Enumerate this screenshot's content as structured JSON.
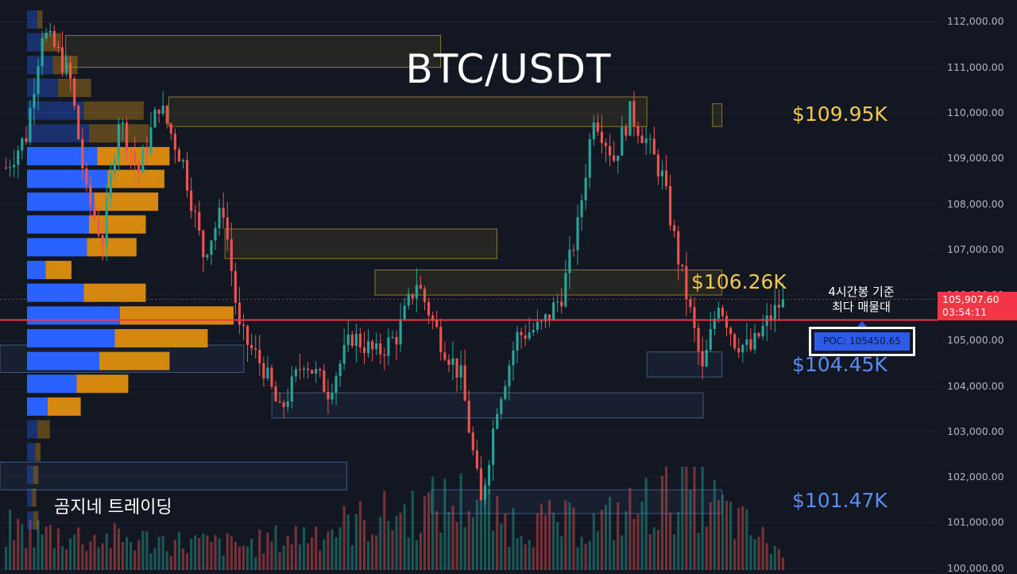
{
  "chart_data": {
    "type": "candlestick",
    "title": "BTC/USDT",
    "ylim": [
      100000,
      112500
    ],
    "y_ticks": [
      "112,000.00",
      "111,000.00",
      "110,000.00",
      "109,000.00",
      "108,000.00",
      "107,000.00",
      "106,000.00",
      "105,000.00",
      "104,000.00",
      "103,000.00",
      "102,000.00",
      "101,000.00",
      "100,000.00"
    ],
    "y_tick_values": [
      112000,
      111000,
      110000,
      109000,
      108000,
      107000,
      106000,
      105000,
      104000,
      103000,
      102000,
      101000,
      100000
    ],
    "current_price": 105907.6,
    "current_price_label": "105,907.60",
    "countdown": "03:54:11",
    "poc_value": 105450.65,
    "poc_label": "POC: 105450.65",
    "annotation": "4시간봉 기준\n최다 매물대",
    "watermark": "곰지네 트레이딩",
    "level_labels": [
      {
        "text": "$109.95K",
        "value": 109950,
        "color": "#f2c94c"
      },
      {
        "text": "$106.26K",
        "value": 106260,
        "color": "#f2c94c"
      },
      {
        "text": "$104.45K",
        "value": 104450,
        "color": "#5b8cf0"
      },
      {
        "text": "$101.47K",
        "value": 101470,
        "color": "#5b8cf0"
      }
    ],
    "zones": [
      {
        "kind": "supply",
        "from": 0.07,
        "to": 0.47,
        "low": 111000,
        "high": 111700
      },
      {
        "kind": "supply",
        "from": 0.18,
        "to": 0.69,
        "low": 109700,
        "high": 110350
      },
      {
        "kind": "supply",
        "from": 0.76,
        "to": 0.77,
        "low": 109700,
        "high": 110200
      },
      {
        "kind": "supply",
        "from": 0.24,
        "to": 0.53,
        "low": 106800,
        "high": 107450
      },
      {
        "kind": "supply",
        "from": 0.4,
        "to": 0.77,
        "low": 106000,
        "high": 106550
      },
      {
        "kind": "demand",
        "from": 0.0,
        "to": 0.26,
        "low": 104300,
        "high": 104900
      },
      {
        "kind": "demand",
        "from": 0.29,
        "to": 0.75,
        "low": 103300,
        "high": 103850
      },
      {
        "kind": "demand",
        "from": 0.69,
        "to": 0.77,
        "low": 104200,
        "high": 104750
      },
      {
        "kind": "demand",
        "from": 0.0,
        "to": 0.37,
        "low": 101720,
        "high": 102330
      },
      {
        "kind": "demand",
        "from": 0.46,
        "to": 0.77,
        "low": 101200,
        "high": 101720
      }
    ],
    "volume_profile": [
      {
        "price": 112050,
        "buy": 10,
        "sell": 5
      },
      {
        "price": 111550,
        "buy": 15,
        "sell": 18
      },
      {
        "price": 111050,
        "buy": 25,
        "sell": 24
      },
      {
        "price": 110550,
        "buy": 30,
        "sell": 32
      },
      {
        "price": 110050,
        "buy": 55,
        "sell": 58
      },
      {
        "price": 109550,
        "buy": 60,
        "sell": 58
      },
      {
        "price": 109050,
        "buy": 68,
        "sell": 70
      },
      {
        "price": 108550,
        "buy": 78,
        "sell": 55
      },
      {
        "price": 108050,
        "buy": 65,
        "sell": 62
      },
      {
        "price": 107550,
        "buy": 60,
        "sell": 55
      },
      {
        "price": 107050,
        "buy": 58,
        "sell": 48
      },
      {
        "price": 106550,
        "buy": 18,
        "sell": 25
      },
      {
        "price": 106050,
        "buy": 55,
        "sell": 60
      },
      {
        "price": 105550,
        "buy": 90,
        "sell": 110
      },
      {
        "price": 105050,
        "buy": 85,
        "sell": 90
      },
      {
        "price": 104550,
        "buy": 70,
        "sell": 68
      },
      {
        "price": 104050,
        "buy": 48,
        "sell": 50
      },
      {
        "price": 103550,
        "buy": 20,
        "sell": 32
      },
      {
        "price": 103050,
        "buy": 10,
        "sell": 12
      },
      {
        "price": 102550,
        "buy": 8,
        "sell": 5
      },
      {
        "price": 102050,
        "buy": 6,
        "sell": 5
      },
      {
        "price": 101550,
        "buy": 5,
        "sell": 4
      },
      {
        "price": 101050,
        "buy": 6,
        "sell": 5
      }
    ],
    "candle_waypoints": [
      [
        0,
        108800
      ],
      [
        5,
        109500
      ],
      [
        9,
        111800
      ],
      [
        13,
        111300
      ],
      [
        16,
        110700
      ],
      [
        20,
        108200
      ],
      [
        24,
        107200
      ],
      [
        28,
        109900
      ],
      [
        33,
        108700
      ],
      [
        38,
        110200
      ],
      [
        44,
        108900
      ],
      [
        49,
        106900
      ],
      [
        54,
        107900
      ],
      [
        58,
        105200
      ],
      [
        64,
        104400
      ],
      [
        68,
        103400
      ],
      [
        74,
        104600
      ],
      [
        80,
        103900
      ],
      [
        86,
        105100
      ],
      [
        92,
        104700
      ],
      [
        97,
        105100
      ],
      [
        102,
        106300
      ],
      [
        108,
        105000
      ],
      [
        113,
        104200
      ],
      [
        118,
        101400
      ],
      [
        122,
        103600
      ],
      [
        127,
        105100
      ],
      [
        133,
        105300
      ],
      [
        138,
        106000
      ],
      [
        142,
        107500
      ],
      [
        146,
        110000
      ],
      [
        151,
        109000
      ],
      [
        155,
        110000
      ],
      [
        159,
        109400
      ],
      [
        163,
        108600
      ],
      [
        167,
        106800
      ],
      [
        170,
        105600
      ],
      [
        173,
        104300
      ],
      [
        177,
        105900
      ],
      [
        181,
        105000
      ],
      [
        185,
        104800
      ],
      [
        189,
        105400
      ],
      [
        193,
        105907
      ]
    ],
    "volume_waypoints": [
      [
        0,
        0.5
      ],
      [
        20,
        0.4
      ],
      [
        60,
        0.3
      ],
      [
        118,
        0.9
      ],
      [
        122,
        0.6
      ],
      [
        146,
        0.55
      ],
      [
        170,
        1.0
      ],
      [
        193,
        0.2
      ]
    ]
  }
}
